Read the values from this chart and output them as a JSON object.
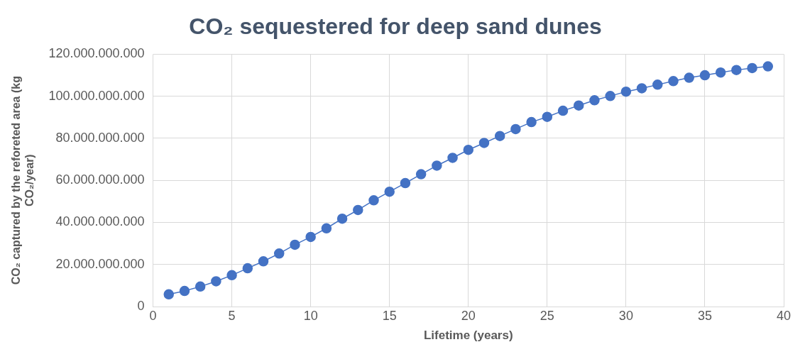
{
  "chart_data": {
    "type": "line",
    "title": "CO₂ sequestered for deep sand dunes",
    "xlabel": "Lifetime (years)",
    "ylabel": "CO₂ captured by the reforeted area (kg CO₂/year)",
    "x": [
      1,
      2,
      3,
      4,
      5,
      6,
      7,
      8,
      9,
      10,
      11,
      12,
      13,
      14,
      15,
      16,
      17,
      18,
      19,
      20,
      21,
      22,
      23,
      24,
      25,
      26,
      27,
      28,
      29,
      30,
      31,
      32,
      33,
      34,
      35,
      36,
      37,
      38,
      39
    ],
    "series": [
      {
        "color": "#4472c4",
        "values": [
          5800000000,
          7400000000,
          9500000000,
          12000000000,
          14900000000,
          18200000000,
          21500000000,
          25200000000,
          29400000000,
          33100000000,
          37200000000,
          41800000000,
          45900000000,
          50500000000,
          54600000000,
          58700000000,
          62900000000,
          67000000000,
          70700000000,
          74500000000,
          77800000000,
          81100000000,
          84400000000,
          87700000000,
          90200000000,
          93100000000,
          95600000000,
          98100000000,
          100100000000,
          102200000000,
          103800000000,
          105500000000,
          107200000000,
          108800000000,
          110000000000,
          111300000000,
          112500000000,
          113400000000,
          114200000000
        ]
      }
    ],
    "xlim": [
      0,
      40
    ],
    "xticks": [
      0,
      5,
      10,
      15,
      20,
      25,
      30,
      35,
      40
    ],
    "ylim": [
      0,
      120000000000
    ],
    "yticks": [
      0,
      {
        "value": 20000000000,
        "label": "20.000.000.000"
      },
      {
        "value": 40000000000,
        "label": "40.000.000.000"
      },
      {
        "value": 60000000000,
        "label": "60.000.000.000"
      },
      {
        "value": 80000000000,
        "label": "80.000.000.000"
      },
      {
        "value": 100000000000,
        "label": "100.000.000.000"
      },
      {
        "value": 120000000000,
        "label": "120.000.000.000"
      }
    ],
    "grid": true,
    "marker": "circle",
    "line_style": "solid",
    "legend": false
  }
}
